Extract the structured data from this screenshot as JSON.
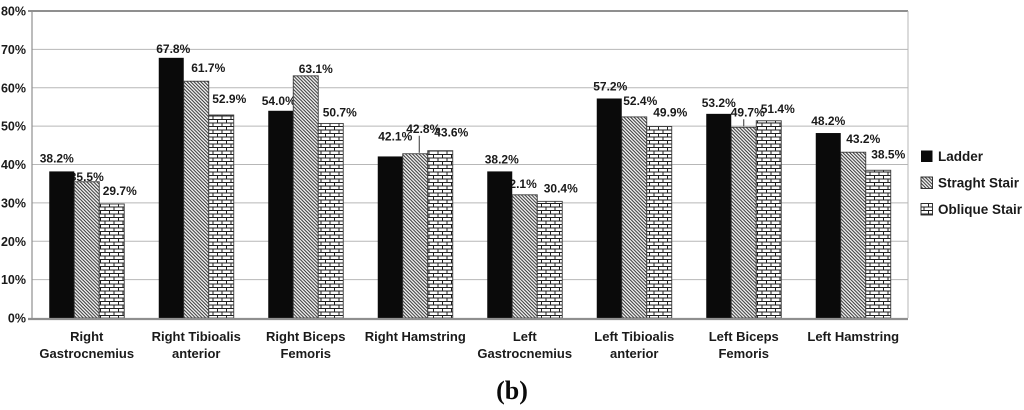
{
  "caption": "(b)",
  "chart_data": {
    "type": "bar",
    "title": "",
    "xlabel": "",
    "ylabel": "",
    "categories": [
      "Right\nGastrocnemius",
      "Right Tibioalis\nanterior",
      "Right Biceps\nFemoris",
      "Right Hamstring",
      "Left\nGastrocnemius",
      "Left Tibioalis\nanterior",
      "Left Biceps\nFemoris",
      "Left Hamstring"
    ],
    "series": [
      {
        "name": "Ladder",
        "pattern": "solid-black",
        "values": [
          38.2,
          67.8,
          54.0,
          42.1,
          38.2,
          57.2,
          53.2,
          48.2
        ]
      },
      {
        "name": "Straght Stair",
        "pattern": "diagonal-hatch",
        "values": [
          35.5,
          61.7,
          63.1,
          42.8,
          32.1,
          52.4,
          49.7,
          43.2
        ]
      },
      {
        "name": "Oblique Stair",
        "pattern": "brick",
        "values": [
          29.7,
          52.9,
          50.7,
          43.6,
          30.4,
          49.9,
          51.4,
          38.5
        ]
      }
    ],
    "value_suffix": "%",
    "data_labels": true,
    "y_axis": {
      "min": 0,
      "max": 80,
      "step": 10,
      "tick_labels": [
        "0%",
        "10%",
        "20%",
        "30%",
        "40%",
        "50%",
        "60%",
        "70%",
        "80%"
      ]
    },
    "grid": true,
    "legend_position": "right"
  },
  "colors": {
    "bar_black": "#0a0a0a",
    "hatch_line": "#2e2e2e",
    "brick_line": "#1f1f1f",
    "bar_border": "#3a3a3a",
    "gridline": "#b7b7b7",
    "frame": "#8f8f8f",
    "text": "#1a1a1a"
  }
}
